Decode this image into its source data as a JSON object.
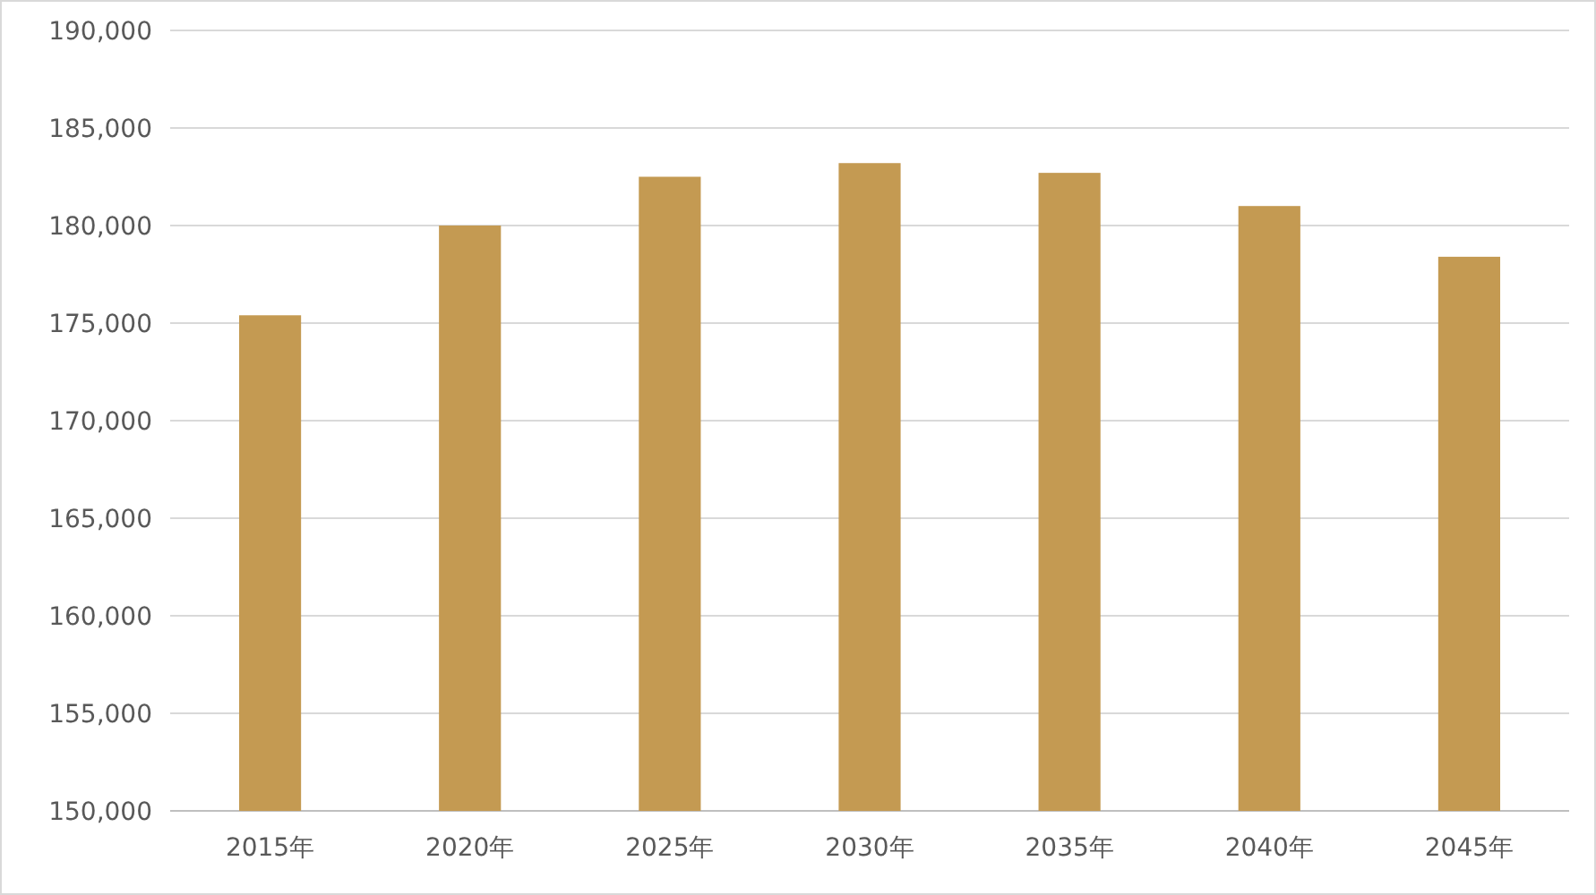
{
  "chart_data": {
    "type": "bar",
    "categories": [
      "2015年",
      "2020年",
      "2025年",
      "2030年",
      "2035年",
      "2040年",
      "2045年"
    ],
    "values": [
      175400,
      180000,
      182500,
      183200,
      182700,
      181000,
      178400
    ],
    "color": "#c49a52",
    "ylim": [
      150000,
      190000
    ],
    "yticks": [
      {
        "value": 150000,
        "label": "150,000"
      },
      {
        "value": 155000,
        "label": "155,000"
      },
      {
        "value": 160000,
        "label": "160,000"
      },
      {
        "value": 165000,
        "label": "165,000"
      },
      {
        "value": 170000,
        "label": "170,000"
      },
      {
        "value": 175000,
        "label": "175,000"
      },
      {
        "value": 180000,
        "label": "180,000"
      },
      {
        "value": 185000,
        "label": "185,000"
      },
      {
        "value": 190000,
        "label": "190,000"
      }
    ],
    "grid": true,
    "legend": false
  }
}
